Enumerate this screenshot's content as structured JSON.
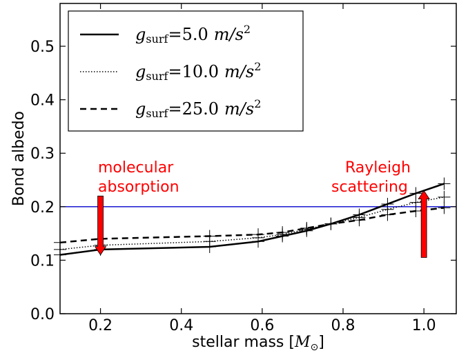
{
  "chart_data": {
    "type": "line",
    "xlabel": "stellar mass",
    "xlabel_unit": "M",
    "xlabel_unit_sub": "⊙",
    "ylabel": "Bond albedo",
    "xlim": [
      0.1,
      1.08
    ],
    "ylim": [
      0.0,
      0.58
    ],
    "xticks": [
      0.2,
      0.4,
      0.6,
      0.8,
      1.0
    ],
    "xtick_labels": [
      "0.2",
      "0.4",
      "0.6",
      "0.8",
      "1.0"
    ],
    "yticks": [
      0.0,
      0.1,
      0.2,
      0.3,
      0.4,
      0.5
    ],
    "ytick_labels": [
      "0.0",
      "0.1",
      "0.2",
      "0.3",
      "0.4",
      "0.5"
    ],
    "grid": false,
    "legend_position": "top-left",
    "reference_line": {
      "y": 0.2,
      "color": "#0000cc"
    },
    "series": [
      {
        "name": "g_surf = 5.0 m/s^2",
        "legend_main": "g",
        "legend_sub": "surf",
        "legend_value": "=5.0",
        "legend_unit": "m/s",
        "legend_exp": "2",
        "style": "solid",
        "x": [
          0.1,
          0.2,
          0.47,
          0.59,
          0.65,
          0.71,
          0.77,
          0.84,
          0.91,
          0.98,
          1.05
        ],
        "y": [
          0.11,
          0.12,
          0.125,
          0.135,
          0.145,
          0.155,
          0.168,
          0.185,
          0.205,
          0.225,
          0.243
        ]
      },
      {
        "name": "g_surf = 10.0 m/s^2",
        "legend_main": "g",
        "legend_sub": "surf",
        "legend_value": "=10.0",
        "legend_unit": "m/s",
        "legend_exp": "2",
        "style": "dotted",
        "x": [
          0.1,
          0.2,
          0.47,
          0.59,
          0.65,
          0.71,
          0.77,
          0.84,
          0.91,
          0.98,
          1.05
        ],
        "y": [
          0.12,
          0.128,
          0.135,
          0.142,
          0.148,
          0.158,
          0.168,
          0.18,
          0.195,
          0.208,
          0.218
        ]
      },
      {
        "name": "g_surf = 25.0 m/s^2",
        "legend_main": "g",
        "legend_sub": "surf",
        "legend_value": "=25.0",
        "legend_unit": "m/s",
        "legend_exp": "2",
        "style": "dashed",
        "x": [
          0.1,
          0.2,
          0.47,
          0.59,
          0.65,
          0.71,
          0.77,
          0.84,
          0.91,
          0.98,
          1.05
        ],
        "y": [
          0.133,
          0.14,
          0.145,
          0.148,
          0.152,
          0.16,
          0.168,
          0.175,
          0.185,
          0.192,
          0.198
        ]
      }
    ],
    "annotations": [
      {
        "lines": [
          "molecular",
          "absorption"
        ],
        "color": "#ff0000"
      },
      {
        "lines": [
          "Rayleigh",
          "scattering"
        ],
        "color": "#ff0000"
      }
    ],
    "arrows": [
      {
        "x": 0.2,
        "y_from": 0.22,
        "y_to": 0.11,
        "direction": "down",
        "color": "#ff0000"
      },
      {
        "x": 1.0,
        "y_from": 0.105,
        "y_to": 0.23,
        "direction": "up",
        "color": "#ff0000"
      }
    ]
  }
}
